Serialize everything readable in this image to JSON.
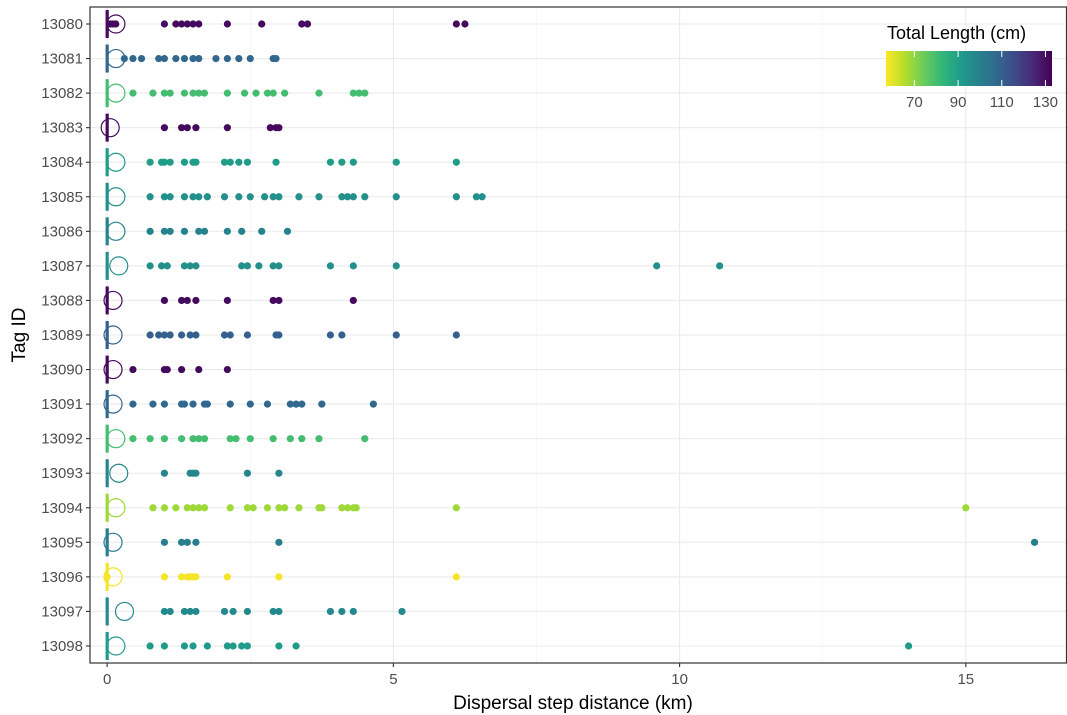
{
  "chart_data": {
    "type": "scatter",
    "xlabel": "Dispersal step distance (km)",
    "ylabel": "Tag ID",
    "xlim": [
      -0.3,
      16.75
    ],
    "x_ticks": [
      0,
      5,
      10,
      15
    ],
    "x_tick_labels": [
      "0",
      "5",
      "10",
      "15"
    ],
    "grid": true,
    "color_scale": {
      "title": "Total Length (cm)",
      "palette": "viridis (reversed: yellow = low, purple = high)",
      "min": 57,
      "max": 133,
      "ticks": [
        70,
        90,
        110,
        130
      ],
      "tick_labels": [
        "70",
        "90",
        "110",
        "130"
      ],
      "placement": "top-right",
      "colors": [
        "#FDE725",
        "#B5DE2B",
        "#6DCD59",
        "#35B779",
        "#1F9E89",
        "#26828E",
        "#31688E",
        "#3E4A89",
        "#482878",
        "#440154"
      ]
    },
    "rows": [
      {
        "tag": "13080",
        "length_cm": 131,
        "points": [
          0.05,
          0.1,
          0.15,
          1.0,
          1.2,
          1.3,
          1.4,
          1.5,
          1.6,
          2.1,
          2.7,
          3.4,
          3.5,
          6.1,
          6.25
        ],
        "circle": 0.1,
        "bar": 0.0
      },
      {
        "tag": "13081",
        "length_cm": 108,
        "points": [
          0.3,
          0.45,
          0.6,
          0.9,
          1.0,
          1.2,
          1.35,
          1.5,
          1.6,
          1.9,
          2.1,
          2.3,
          2.5,
          2.9,
          2.95
        ],
        "circle": 0.1,
        "bar": 0.0
      },
      {
        "tag": "13082",
        "length_cm": 80,
        "points": [
          0.45,
          0.8,
          1.0,
          1.1,
          1.35,
          1.5,
          1.6,
          1.7,
          2.1,
          2.4,
          2.6,
          2.8,
          2.9,
          3.1,
          3.7,
          4.3,
          4.4,
          4.5
        ],
        "circle": 0.1,
        "bar": 0.0
      },
      {
        "tag": "13083",
        "length_cm": 131,
        "points": [
          1.0,
          1.3,
          1.4,
          1.55,
          2.1,
          2.85,
          2.95,
          3.0
        ],
        "circle": 0.0,
        "bar": 0.0
      },
      {
        "tag": "13084",
        "length_cm": 91,
        "points": [
          0.75,
          0.95,
          1.0,
          1.1,
          1.35,
          1.5,
          1.55,
          2.05,
          2.15,
          2.3,
          2.45,
          2.95,
          3.9,
          4.1,
          4.3,
          5.05,
          6.1
        ],
        "circle": 0.1,
        "bar": 0.0
      },
      {
        "tag": "13085",
        "length_cm": 95,
        "points": [
          0.75,
          1.0,
          1.1,
          1.35,
          1.5,
          1.6,
          1.75,
          2.05,
          2.3,
          2.5,
          2.75,
          2.9,
          3.0,
          3.35,
          3.7,
          4.1,
          4.2,
          4.3,
          4.5,
          5.05,
          6.1,
          6.45,
          6.55
        ],
        "circle": 0.1,
        "bar": 0.0
      },
      {
        "tag": "13086",
        "length_cm": 99,
        "points": [
          0.75,
          1.0,
          1.1,
          1.35,
          1.6,
          1.7,
          2.1,
          2.35,
          2.7,
          3.15
        ],
        "circle": 0.1,
        "bar": 0.0
      },
      {
        "tag": "13087",
        "length_cm": 95,
        "points": [
          0.75,
          0.95,
          1.05,
          1.35,
          1.45,
          1.55,
          2.35,
          2.45,
          2.65,
          2.9,
          3.0,
          3.9,
          4.3,
          5.05,
          9.6,
          10.7
        ],
        "circle": 0.15,
        "bar": 0.0
      },
      {
        "tag": "13088",
        "length_cm": 131,
        "points": [
          1.0,
          1.3,
          1.4,
          1.55,
          2.1,
          2.9,
          3.0,
          4.3
        ],
        "circle": 0.05,
        "bar": 0.0
      },
      {
        "tag": "13089",
        "length_cm": 110,
        "points": [
          0.75,
          0.9,
          1.0,
          1.1,
          1.3,
          1.45,
          1.55,
          2.05,
          2.15,
          2.45,
          2.95,
          3.0,
          3.9,
          4.1,
          5.05,
          6.1
        ],
        "circle": 0.05,
        "bar": 0.0
      },
      {
        "tag": "13090",
        "length_cm": 131,
        "points": [
          0.45,
          1.0,
          1.05,
          1.3,
          1.6,
          2.1
        ],
        "circle": 0.05,
        "bar": 0.0
      },
      {
        "tag": "13091",
        "length_cm": 108,
        "points": [
          0.45,
          0.8,
          1.0,
          1.3,
          1.35,
          1.5,
          1.7,
          1.75,
          2.15,
          2.5,
          2.8,
          3.2,
          3.3,
          3.4,
          3.75,
          4.65
        ],
        "circle": 0.05,
        "bar": 0.0
      },
      {
        "tag": "13092",
        "length_cm": 80,
        "points": [
          0.45,
          0.75,
          1.0,
          1.3,
          1.5,
          1.6,
          1.7,
          2.15,
          2.25,
          2.5,
          2.9,
          3.2,
          3.4,
          3.7,
          4.5
        ],
        "circle": 0.1,
        "bar": 0.0
      },
      {
        "tag": "13093",
        "length_cm": 98,
        "points": [
          1.0,
          1.45,
          1.5,
          1.55,
          2.45,
          3.0
        ],
        "circle": 0.15,
        "bar": 0.0
      },
      {
        "tag": "13094",
        "length_cm": 68,
        "points": [
          0.8,
          1.0,
          1.2,
          1.4,
          1.5,
          1.6,
          1.7,
          2.15,
          2.45,
          2.55,
          2.8,
          3.0,
          3.1,
          3.35,
          3.7,
          3.75,
          4.1,
          4.2,
          4.3,
          4.35,
          6.1,
          15.0
        ],
        "circle": 0.1,
        "bar": 0.0
      },
      {
        "tag": "13095",
        "length_cm": 101,
        "points": [
          1.0,
          1.3,
          1.4,
          1.55,
          3.0,
          16.2
        ],
        "circle": 0.05,
        "bar": 0.0
      },
      {
        "tag": "13096",
        "length_cm": 58,
        "points": [
          0.0,
          1.0,
          1.3,
          1.4,
          1.45,
          1.5,
          1.55,
          2.1,
          3.0,
          6.1
        ],
        "circle": 0.05,
        "bar": 0.0
      },
      {
        "tag": "13097",
        "length_cm": 97,
        "points": [
          1.0,
          1.1,
          1.35,
          1.45,
          1.55,
          2.05,
          2.2,
          2.45,
          2.9,
          3.0,
          3.9,
          4.1,
          4.3,
          5.15
        ],
        "circle": 0.25,
        "bar": 0.0
      },
      {
        "tag": "13098",
        "length_cm": 92,
        "points": [
          0.75,
          1.0,
          1.35,
          1.5,
          1.75,
          2.1,
          2.2,
          2.35,
          2.45,
          3.0,
          3.3,
          14.0
        ],
        "circle": 0.1,
        "bar": 0.0
      }
    ]
  }
}
